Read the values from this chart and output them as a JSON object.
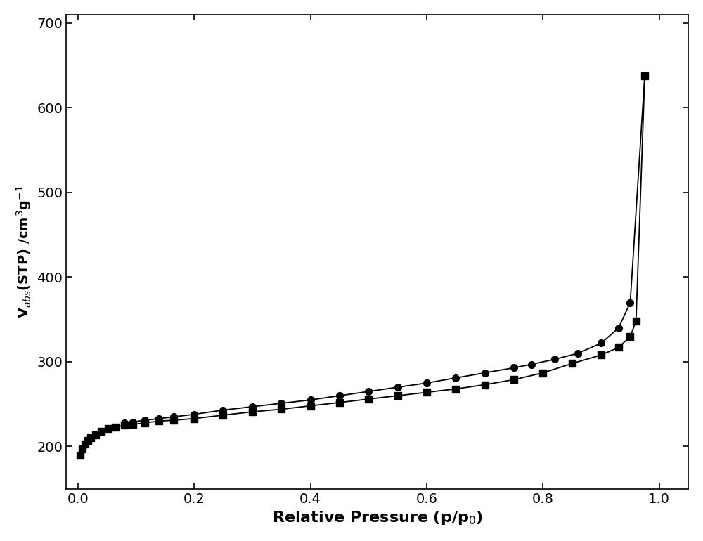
{
  "adsorption_x": [
    0.004,
    0.008,
    0.012,
    0.017,
    0.022,
    0.03,
    0.04,
    0.052,
    0.065,
    0.08,
    0.095,
    0.115,
    0.14,
    0.165,
    0.2,
    0.25,
    0.3,
    0.35,
    0.4,
    0.45,
    0.5,
    0.55,
    0.6,
    0.65,
    0.7,
    0.75,
    0.8,
    0.85,
    0.9,
    0.93,
    0.95,
    0.96,
    0.975
  ],
  "adsorption_y": [
    190,
    197,
    203,
    207,
    210,
    214,
    218,
    221,
    223,
    225,
    226,
    228,
    230,
    231,
    233,
    237,
    241,
    244,
    248,
    252,
    256,
    260,
    264,
    268,
    273,
    279,
    287,
    298,
    308,
    317,
    330,
    348,
    638
  ],
  "desorption_x": [
    0.975,
    0.95,
    0.93,
    0.9,
    0.86,
    0.82,
    0.78,
    0.75,
    0.7,
    0.65,
    0.6,
    0.55,
    0.5,
    0.45,
    0.4,
    0.35,
    0.3,
    0.25,
    0.2,
    0.165,
    0.14,
    0.115,
    0.095,
    0.08
  ],
  "desorption_y": [
    638,
    370,
    340,
    322,
    310,
    303,
    297,
    293,
    287,
    281,
    275,
    270,
    265,
    260,
    255,
    251,
    247,
    243,
    238,
    235,
    233,
    231,
    229,
    228
  ],
  "xlabel": "Relative Pressure (p/p$_0$)",
  "ylabel": "V$_{abs}$(STP) /cm$^3$g$^{-1}$",
  "xlim": [
    -0.02,
    1.05
  ],
  "ylim": [
    150,
    710
  ],
  "yticks": [
    200,
    300,
    400,
    500,
    600,
    700
  ],
  "xticks": [
    0.0,
    0.2,
    0.4,
    0.6,
    0.8,
    1.0
  ],
  "line_color": "#000000",
  "marker_adsorption": "s",
  "marker_desorption": "o",
  "marker_size": 7,
  "line_width": 1.3,
  "background_color": "#ffffff",
  "xlabel_fontsize": 16,
  "ylabel_fontsize": 14,
  "tick_fontsize": 14
}
